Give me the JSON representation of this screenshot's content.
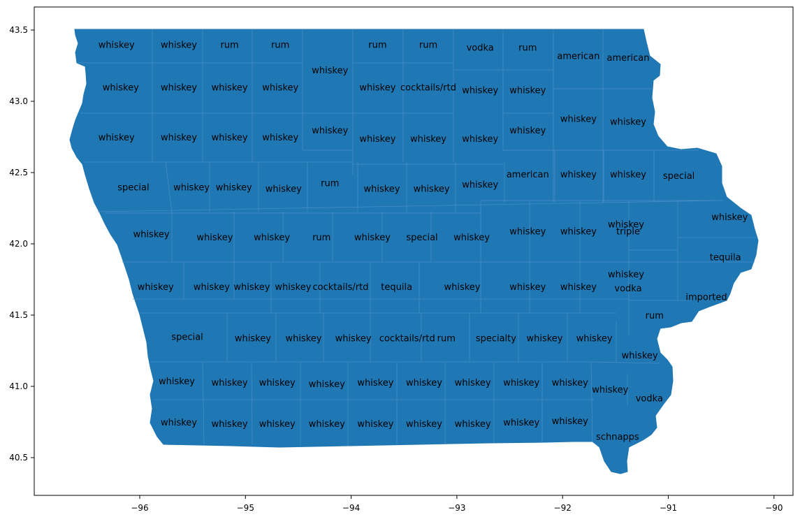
{
  "map": {
    "fill_color": "#1f77b4",
    "border_color": "#4a90c8",
    "label_color": "#000000"
  },
  "chart_data": {
    "type": "map",
    "x_ticks": [
      "−96",
      "−95",
      "−94",
      "−93",
      "−92",
      "−91",
      "−90"
    ],
    "y_ticks": [
      "43.5",
      "43.0",
      "42.5",
      "42.0",
      "41.5",
      "41.0",
      "40.5"
    ],
    "county_labels": [
      {
        "text": "whiskey",
        "lon": -96.22,
        "lat": 43.4
      },
      {
        "text": "whiskey",
        "lon": -95.63,
        "lat": 43.4
      },
      {
        "text": "rum",
        "lon": -95.15,
        "lat": 43.4
      },
      {
        "text": "rum",
        "lon": -94.67,
        "lat": 43.4
      },
      {
        "text": "rum",
        "lon": -93.75,
        "lat": 43.4
      },
      {
        "text": "rum",
        "lon": -93.27,
        "lat": 43.4
      },
      {
        "text": "vodka",
        "lon": -92.78,
        "lat": 43.38
      },
      {
        "text": "rum",
        "lon": -92.33,
        "lat": 43.38
      },
      {
        "text": "american",
        "lon": -91.85,
        "lat": 43.32
      },
      {
        "text": "american",
        "lon": -91.38,
        "lat": 43.31
      },
      {
        "text": "whiskey",
        "lon": -94.2,
        "lat": 43.22
      },
      {
        "text": "whiskey",
        "lon": -96.18,
        "lat": 43.1
      },
      {
        "text": "whiskey",
        "lon": -95.63,
        "lat": 43.1
      },
      {
        "text": "whiskey",
        "lon": -95.15,
        "lat": 43.1
      },
      {
        "text": "whiskey",
        "lon": -94.67,
        "lat": 43.1
      },
      {
        "text": "whiskey",
        "lon": -93.75,
        "lat": 43.1
      },
      {
        "text": "cocktails/rtd",
        "lon": -93.27,
        "lat": 43.1
      },
      {
        "text": "whiskey",
        "lon": -92.78,
        "lat": 43.08
      },
      {
        "text": "whiskey",
        "lon": -92.33,
        "lat": 43.08
      },
      {
        "text": "whiskey",
        "lon": -91.85,
        "lat": 42.88
      },
      {
        "text": "whiskey",
        "lon": -91.38,
        "lat": 42.86
      },
      {
        "text": "whiskey",
        "lon": -94.2,
        "lat": 42.8
      },
      {
        "text": "whiskey",
        "lon": -92.33,
        "lat": 42.8
      },
      {
        "text": "whiskey",
        "lon": -96.22,
        "lat": 42.75
      },
      {
        "text": "whiskey",
        "lon": -95.63,
        "lat": 42.75
      },
      {
        "text": "whiskey",
        "lon": -95.15,
        "lat": 42.75
      },
      {
        "text": "whiskey",
        "lon": -94.67,
        "lat": 42.75
      },
      {
        "text": "whiskey",
        "lon": -93.75,
        "lat": 42.74
      },
      {
        "text": "whiskey",
        "lon": -93.27,
        "lat": 42.74
      },
      {
        "text": "whiskey",
        "lon": -92.78,
        "lat": 42.74
      },
      {
        "text": "american",
        "lon": -92.33,
        "lat": 42.49
      },
      {
        "text": "whiskey",
        "lon": -91.85,
        "lat": 42.49
      },
      {
        "text": "whiskey",
        "lon": -91.38,
        "lat": 42.49
      },
      {
        "text": "special",
        "lon": -90.9,
        "lat": 42.48
      },
      {
        "text": "rum",
        "lon": -94.2,
        "lat": 42.43
      },
      {
        "text": "whiskey",
        "lon": -92.78,
        "lat": 42.42
      },
      {
        "text": "special",
        "lon": -96.06,
        "lat": 42.4
      },
      {
        "text": "whiskey",
        "lon": -95.51,
        "lat": 42.4
      },
      {
        "text": "whiskey",
        "lon": -95.11,
        "lat": 42.4
      },
      {
        "text": "whiskey",
        "lon": -94.64,
        "lat": 42.39
      },
      {
        "text": "whiskey",
        "lon": -93.71,
        "lat": 42.39
      },
      {
        "text": "whiskey",
        "lon": -93.24,
        "lat": 42.39
      },
      {
        "text": "whiskey",
        "lon": -90.42,
        "lat": 42.19
      },
      {
        "text": "whiskey",
        "lon": -91.4,
        "lat": 42.14
      },
      {
        "text": "whiskey",
        "lon": -92.33,
        "lat": 42.09
      },
      {
        "text": "whiskey",
        "lon": -91.85,
        "lat": 42.09
      },
      {
        "text": "triple",
        "lon": -91.38,
        "lat": 42.09
      },
      {
        "text": "whiskey",
        "lon": -95.89,
        "lat": 42.07
      },
      {
        "text": "whiskey",
        "lon": -95.29,
        "lat": 42.05
      },
      {
        "text": "whiskey",
        "lon": -94.75,
        "lat": 42.05
      },
      {
        "text": "rum",
        "lon": -94.28,
        "lat": 42.05
      },
      {
        "text": "whiskey",
        "lon": -93.8,
        "lat": 42.05
      },
      {
        "text": "special",
        "lon": -93.33,
        "lat": 42.05
      },
      {
        "text": "whiskey",
        "lon": -92.86,
        "lat": 42.05
      },
      {
        "text": "tequila",
        "lon": -90.46,
        "lat": 41.91
      },
      {
        "text": "whiskey",
        "lon": -91.4,
        "lat": 41.79
      },
      {
        "text": "whiskey",
        "lon": -95.85,
        "lat": 41.7
      },
      {
        "text": "whiskey",
        "lon": -95.32,
        "lat": 41.7
      },
      {
        "text": "whiskey",
        "lon": -94.94,
        "lat": 41.7
      },
      {
        "text": "whiskey",
        "lon": -94.55,
        "lat": 41.7
      },
      {
        "text": "cocktails/rtd",
        "lon": -94.1,
        "lat": 41.7
      },
      {
        "text": "tequila",
        "lon": -93.57,
        "lat": 41.7
      },
      {
        "text": "whiskey",
        "lon": -92.95,
        "lat": 41.7
      },
      {
        "text": "whiskey",
        "lon": -92.33,
        "lat": 41.7
      },
      {
        "text": "whiskey",
        "lon": -91.85,
        "lat": 41.7
      },
      {
        "text": "vodka",
        "lon": -91.38,
        "lat": 41.69
      },
      {
        "text": "imported",
        "lon": -90.64,
        "lat": 41.63
      },
      {
        "text": "rum",
        "lon": -91.13,
        "lat": 41.5
      },
      {
        "text": "special",
        "lon": -95.55,
        "lat": 41.35
      },
      {
        "text": "whiskey",
        "lon": -94.93,
        "lat": 41.34
      },
      {
        "text": "whiskey",
        "lon": -94.45,
        "lat": 41.34
      },
      {
        "text": "whiskey",
        "lon": -93.98,
        "lat": 41.34
      },
      {
        "text": "cocktails/rtd",
        "lon": -93.47,
        "lat": 41.34
      },
      {
        "text": "rum",
        "lon": -93.1,
        "lat": 41.34
      },
      {
        "text": "specialty",
        "lon": -92.63,
        "lat": 41.34
      },
      {
        "text": "whiskey",
        "lon": -92.17,
        "lat": 41.34
      },
      {
        "text": "whiskey",
        "lon": -91.7,
        "lat": 41.34
      },
      {
        "text": "whiskey",
        "lon": -91.27,
        "lat": 41.22
      },
      {
        "text": "whiskey",
        "lon": -95.65,
        "lat": 41.04
      },
      {
        "text": "whiskey",
        "lon": -95.15,
        "lat": 41.03
      },
      {
        "text": "whiskey",
        "lon": -94.7,
        "lat": 41.03
      },
      {
        "text": "whiskey",
        "lon": -94.23,
        "lat": 41.02
      },
      {
        "text": "whiskey",
        "lon": -93.77,
        "lat": 41.03
      },
      {
        "text": "whiskey",
        "lon": -93.31,
        "lat": 41.03
      },
      {
        "text": "whiskey",
        "lon": -92.85,
        "lat": 41.03
      },
      {
        "text": "whiskey",
        "lon": -92.39,
        "lat": 41.03
      },
      {
        "text": "whiskey",
        "lon": -91.93,
        "lat": 41.03
      },
      {
        "text": "whiskey",
        "lon": -91.55,
        "lat": 40.98
      },
      {
        "text": "vodka",
        "lon": -91.18,
        "lat": 40.92
      },
      {
        "text": "whiskey",
        "lon": -95.63,
        "lat": 40.75
      },
      {
        "text": "whiskey",
        "lon": -95.15,
        "lat": 40.74
      },
      {
        "text": "whiskey",
        "lon": -94.7,
        "lat": 40.74
      },
      {
        "text": "whiskey",
        "lon": -94.23,
        "lat": 40.74
      },
      {
        "text": "whiskey",
        "lon": -93.77,
        "lat": 40.74
      },
      {
        "text": "whiskey",
        "lon": -93.31,
        "lat": 40.74
      },
      {
        "text": "whiskey",
        "lon": -92.85,
        "lat": 40.74
      },
      {
        "text": "whiskey",
        "lon": -92.39,
        "lat": 40.75
      },
      {
        "text": "whiskey",
        "lon": -91.93,
        "lat": 40.76
      },
      {
        "text": "schnapps",
        "lon": -91.48,
        "lat": 40.65
      }
    ]
  }
}
